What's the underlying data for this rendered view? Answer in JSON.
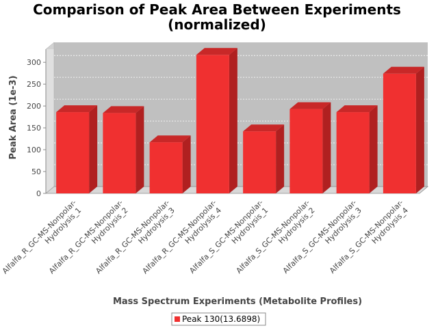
{
  "chart_data": {
    "type": "bar",
    "title_lines": [
      "Comparison of Peak Area Between Experiments",
      "(normalized)"
    ],
    "xlabel": "Mass Spectrum Experiments (Metabolite Profiles)",
    "ylabel": "Peak Area (1e-3)",
    "ylim": [
      0,
      330
    ],
    "yticks": [
      0,
      50,
      100,
      150,
      200,
      250,
      300
    ],
    "grid": true,
    "legend_position": "bottom",
    "categories": [
      [
        "Alfalfa_R_GC-MS-Nonpolar-",
        "Hydrolysis_1"
      ],
      [
        "Alfalfa_R_GC-MS-Nonpolar-",
        "Hydrolysis_2"
      ],
      [
        "Alfalfa_R_GC-MS-Nonpolar-",
        "Hydrolysis_3"
      ],
      [
        "Alfalfa_R_GC-MS-Nonpolar-",
        "Hydrolysis_4"
      ],
      [
        "Alfalfa_S_GC-MS-Nonpolar-",
        "Hydrolysis_1"
      ],
      [
        "Alfalfa_S_GC-MS-Nonpolar-",
        "Hydrolysis_2"
      ],
      [
        "Alfalfa_S_GC-MS-Nonpolar-",
        "Hydrolysis_3"
      ],
      [
        "Alfalfa_S_GC-MS-Nonpolar-",
        "Hydrolysis_4"
      ]
    ],
    "series": [
      {
        "name": "Peak 130(13.6898)",
        "color": "#f03030",
        "values": [
          186,
          184,
          117,
          317,
          142,
          193,
          186,
          274
        ]
      }
    ]
  }
}
